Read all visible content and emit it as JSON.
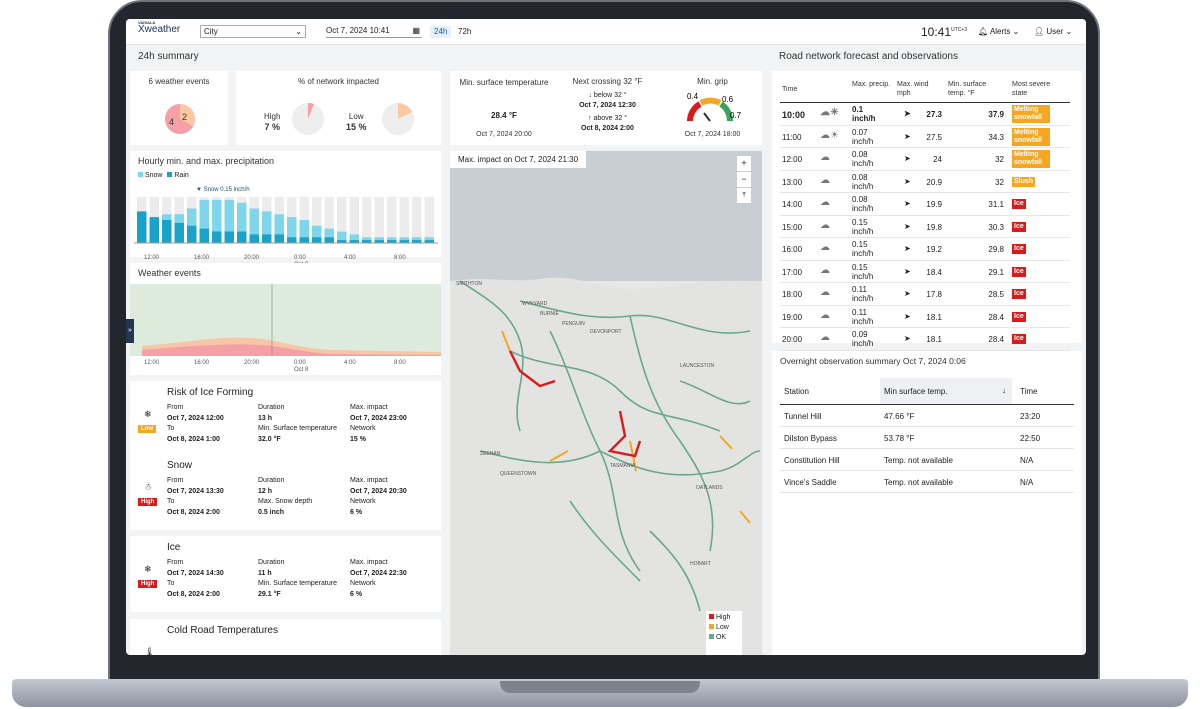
{
  "app": {
    "brand_top": "VAISALA",
    "brand": "Xweather",
    "city_select": "City",
    "datetime": "Oct 7, 2024 10:41",
    "range_24": "24h",
    "range_72": "72h",
    "clock": "10:41",
    "utc": "UTC+3",
    "alerts": "Alerts",
    "user": "User"
  },
  "summary": {
    "title": "24h summary",
    "events_title": "6 weather events",
    "pie_values": [
      "4",
      "2"
    ],
    "network_title": "% of network impacted",
    "high_label": "High",
    "high_value": "7 %",
    "low_label": "Low",
    "low_value": "15 %",
    "min_surface_title": "Min. surface temperature",
    "min_surface_value": "28.4 °F",
    "min_surface_time": "Oct 7, 2024 20:00",
    "next_cross_title": "Next crossing 32 °F",
    "below_label": "↓ below 32 °",
    "below_time": "Oct 7, 2024 12:30",
    "above_label": "↑ above 32 °",
    "above_time": "Oct 8, 2024 2:00",
    "grip_title": "Min. grip",
    "grip_l": "0.4",
    "grip_m": "0.6",
    "grip_r": "0.7",
    "grip_time": "Oct 7, 2024 18:00"
  },
  "precip": {
    "title": "Hourly min. and max. precipitation",
    "legend_snow": "Snow",
    "legend_rain": "Rain",
    "annotation": "▼ Snow 0.15 inch/h",
    "x_ticks": [
      "12:00",
      "16:00",
      "20:00",
      "0:00",
      "4:00",
      "8:00"
    ],
    "x_sub": "Oct 8"
  },
  "weather_events": {
    "title": "Weather events",
    "x_ticks": [
      "12:00",
      "16:00",
      "20:00",
      "0:00",
      "4:00",
      "8:00"
    ],
    "x_sub": "Oct 8"
  },
  "events": [
    {
      "title": "Risk of Ice Forming",
      "badge": "Low",
      "from_l": "From",
      "from": "Oct 7, 2024 12:00",
      "to_l": "To",
      "to": "Oct 8, 2024 1:00",
      "dur_l": "Duration",
      "dur": "13 h",
      "extra_l": "Min. Surface temperature",
      "extra": "32.0 °F",
      "mi_l": "Max. impact",
      "mi": "Oct 7, 2024 23:00",
      "net_l": "Network",
      "net": "15 %"
    },
    {
      "title": "Snow",
      "badge": "High",
      "from_l": "From",
      "from": "Oct 7, 2024 13:30",
      "to_l": "To",
      "to": "Oct 8, 2024 2:00",
      "dur_l": "Duration",
      "dur": "12 h",
      "extra_l": "Max. Snow depth",
      "extra": "0.5 inch",
      "mi_l": "Max. impact",
      "mi": "Oct 7, 2024 20:30",
      "net_l": "Network",
      "net": "6 %"
    },
    {
      "title": "Ice",
      "badge": "High",
      "from_l": "From",
      "from": "Oct 7, 2024 14:30",
      "to_l": "To",
      "to": "Oct 8, 2024 2:00",
      "dur_l": "Duration",
      "dur": "11 h",
      "extra_l": "Min. Surface temperature",
      "extra": "29.1 °F",
      "mi_l": "Max. impact",
      "mi": "Oct 7, 2024 22:30",
      "net_l": "Network",
      "net": "6 %"
    },
    {
      "title": "Cold Road Temperatures"
    }
  ],
  "map": {
    "title": "Max. impact on Oct 7, 2024 21:30",
    "zoom_in": "+",
    "zoom_out": "−",
    "reset": "⤒",
    "legend_high": "High",
    "legend_low": "Low",
    "legend_ok": "OK",
    "places": [
      "SMITHTON",
      "WYNYARD",
      "BURNIE",
      "PENGUIN",
      "DEVONPORT",
      "LAUNCESTON",
      "TASMANIA",
      "OATLANDS",
      "HOBART",
      "ZEEHAN",
      "QUEENSTOWN"
    ]
  },
  "road": {
    "title": "Road network forecast and observations",
    "headers": {
      "time": "Time",
      "precip": "Max. precip.",
      "wind": "Max. wind mph",
      "temp": "Min. surface temp. °F",
      "state": "Most severe state"
    },
    "rows": [
      {
        "time": "10:00",
        "icon": "snow-sun-icon",
        "p1": "0.1",
        "p2": "inch/h",
        "wind": "27.3",
        "temp": "37.9",
        "state": "Melting snowfall",
        "cls": "cl-orange",
        "bold": true
      },
      {
        "time": "11:00",
        "icon": "snow-sun-icon",
        "p1": "0.07",
        "p2": "inch/h",
        "wind": "27.5",
        "temp": "34.3",
        "state": "Melting snowfall",
        "cls": "cl-orange"
      },
      {
        "time": "12:00",
        "icon": "snow-cloud-icon",
        "p1": "0.08",
        "p2": "inch/h",
        "wind": "24",
        "temp": "32",
        "state": "Melting snowfall",
        "cls": "cl-orange"
      },
      {
        "time": "13:00",
        "icon": "cloud-icon",
        "p1": "0.08",
        "p2": "inch/h",
        "wind": "20.9",
        "temp": "32",
        "state": "Slush",
        "cls": "cl-orange"
      },
      {
        "time": "14:00",
        "icon": "snow-cloud-icon",
        "p1": "0.08",
        "p2": "inch/h",
        "wind": "19.9",
        "temp": "31.1",
        "state": "Ice",
        "cls": "cl-red"
      },
      {
        "time": "15:00",
        "icon": "snow-cloud-icon",
        "p1": "0.15",
        "p2": "inch/h",
        "wind": "19.8",
        "temp": "30.3",
        "state": "Ice",
        "cls": "cl-red"
      },
      {
        "time": "16:00",
        "icon": "snow-cloud-icon",
        "p1": "0.15",
        "p2": "inch/h",
        "wind": "19.2",
        "temp": "29.8",
        "state": "Ice",
        "cls": "cl-red"
      },
      {
        "time": "17:00",
        "icon": "snow-cloud-icon",
        "p1": "0.15",
        "p2": "inch/h",
        "wind": "18.4",
        "temp": "29.1",
        "state": "Ice",
        "cls": "cl-red"
      },
      {
        "time": "18:00",
        "icon": "snow-cloud-icon",
        "p1": "0.11",
        "p2": "inch/h",
        "wind": "17.8",
        "temp": "28.5",
        "state": "Ice",
        "cls": "cl-red"
      },
      {
        "time": "19:00",
        "icon": "snow-cloud-icon",
        "p1": "0.11",
        "p2": "inch/h",
        "wind": "18.1",
        "temp": "28.4",
        "state": "Ice",
        "cls": "cl-red"
      },
      {
        "time": "20:00",
        "icon": "snow-cloud-icon",
        "p1": "0.09",
        "p2": "inch/h",
        "wind": "18.1",
        "temp": "28.4",
        "state": "Ice",
        "cls": "cl-red"
      }
    ]
  },
  "overnight": {
    "title": "Overnight observation summary Oct 7, 2024 0:06",
    "h_station": "Station",
    "h_temp": "Min surface temp.",
    "h_time": "Time",
    "sort": "↓",
    "rows": [
      {
        "station": "Tunnel Hill",
        "temp": "47.66 °F",
        "time": "23:20"
      },
      {
        "station": "Dilston Bypass",
        "temp": "53.78 °F",
        "time": "22:50"
      },
      {
        "station": "Constitution Hill",
        "temp": "Temp. not available",
        "time": "N/A"
      },
      {
        "station": "Vince's Saddle",
        "temp": "Temp. not available",
        "time": "N/A"
      }
    ]
  },
  "colors": {
    "snow": "#7fd6ea",
    "rain": "#1aa3c8",
    "high": "#d91b1b",
    "low": "#f5a623",
    "ok": "#6aa88a"
  }
}
